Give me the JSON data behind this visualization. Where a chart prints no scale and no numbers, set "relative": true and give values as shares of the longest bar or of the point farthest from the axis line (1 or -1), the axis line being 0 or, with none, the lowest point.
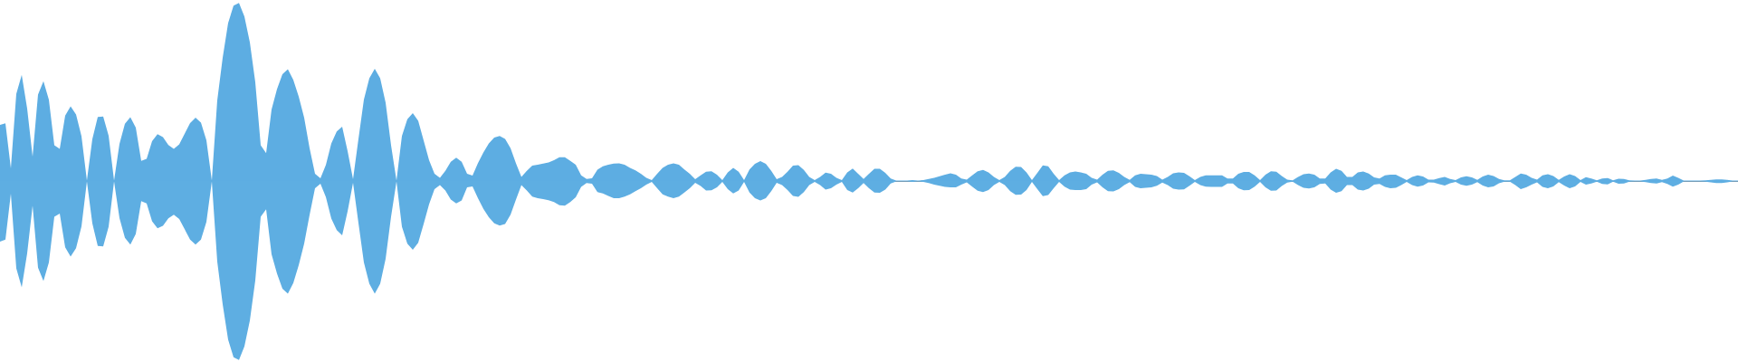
{
  "chart_data": {
    "type": "area",
    "relative": true,
    "categories": [
      null,
      null,
      null,
      null,
      null,
      null,
      null,
      null,
      null,
      null,
      null,
      null,
      null,
      null,
      null,
      null,
      null,
      null,
      null,
      null,
      null,
      null,
      null,
      null,
      null,
      null,
      null,
      null,
      null,
      null,
      null,
      null,
      null,
      null,
      null,
      null,
      null,
      null,
      null,
      null,
      null,
      null,
      null,
      null,
      null,
      null,
      null,
      null,
      null,
      null,
      null,
      null,
      null,
      null,
      null,
      null,
      null,
      null,
      null,
      null,
      null,
      null,
      null,
      null,
      null,
      null,
      null,
      null,
      null,
      null,
      null,
      null,
      null,
      null,
      null,
      null,
      null,
      null,
      null,
      null,
      null,
      null,
      null,
      null,
      null,
      null,
      null,
      null,
      null,
      null,
      null,
      null,
      null,
      null,
      null,
      null,
      null,
      null,
      null,
      null,
      null,
      null,
      null,
      null,
      null,
      null,
      null,
      null,
      null,
      null,
      null,
      null,
      null,
      null,
      null,
      null,
      null,
      null,
      null,
      null,
      null,
      null,
      null,
      null,
      null,
      null,
      null,
      null,
      null,
      null,
      null,
      null,
      null,
      null,
      null,
      null,
      null,
      null,
      null,
      null,
      null,
      null,
      null,
      null,
      null,
      null,
      null,
      null,
      null,
      null,
      null,
      null,
      null,
      null,
      null,
      null,
      null,
      null,
      null,
      null,
      null,
      null,
      null,
      null,
      null,
      null,
      null,
      null,
      null,
      null,
      null,
      null,
      null,
      null,
      null,
      null,
      null,
      null,
      null,
      null,
      null,
      null,
      null,
      null,
      null,
      null,
      null,
      null,
      null,
      null,
      null,
      null,
      null,
      null,
      null,
      null,
      null,
      null,
      null,
      null,
      null,
      null,
      null,
      null,
      null,
      null,
      null,
      null,
      null,
      null,
      null,
      null,
      null,
      null,
      null,
      null,
      null,
      null,
      null,
      null,
      null,
      null,
      null,
      null,
      null,
      null,
      null,
      null,
      null,
      null,
      null,
      null,
      null,
      null,
      null,
      null,
      null,
      null,
      null,
      null,
      null,
      null,
      null,
      null,
      null,
      null,
      null,
      null,
      null,
      null,
      null,
      null,
      null,
      null,
      null,
      null,
      null,
      null,
      null,
      null,
      null,
      null,
      null,
      null,
      null,
      null,
      null,
      null,
      null,
      null,
      null,
      null,
      null,
      null,
      null,
      null,
      null,
      null,
      null,
      null,
      null,
      null,
      null,
      null,
      null,
      null,
      null,
      null,
      null,
      null,
      null,
      null,
      null,
      null,
      null,
      null,
      null,
      null,
      null,
      null,
      null,
      null,
      null,
      null,
      null,
      null,
      null,
      null,
      null,
      null,
      null,
      null,
      null,
      null,
      null,
      null,
      null,
      null,
      null,
      null,
      null
    ],
    "series": [
      {
        "color": "#5dade2",
        "values": [
          0.314,
          0.323,
          0.071,
          0.487,
          0.593,
          0.405,
          0.137,
          0.483,
          0.558,
          0.454,
          0.2,
          0.18,
          0.366,
          0.418,
          0.372,
          0.251,
          0.003,
          0.234,
          0.358,
          0.361,
          0.253,
          0.003,
          0.208,
          0.32,
          0.357,
          0.298,
          0.113,
          0.124,
          0.223,
          0.262,
          0.246,
          0.201,
          0.18,
          0.205,
          0.264,
          0.324,
          0.354,
          0.326,
          0.228,
          0.003,
          0.45,
          0.69,
          0.883,
          0.98,
          0.995,
          0.92,
          0.776,
          0.553,
          0.2,
          0.156,
          0.4,
          0.513,
          0.597,
          0.625,
          0.566,
          0.472,
          0.354,
          0.184,
          0.04,
          0.015,
          0.09,
          0.21,
          0.277,
          0.303,
          0.167,
          0.01,
          0.235,
          0.455,
          0.574,
          0.628,
          0.574,
          0.438,
          0.2,
          0.003,
          0.252,
          0.345,
          0.379,
          0.337,
          0.227,
          0.116,
          0.04,
          0.018,
          0.057,
          0.108,
          0.13,
          0.108,
          0.04,
          0.03,
          0.1,
          0.159,
          0.21,
          0.243,
          0.252,
          0.235,
          0.184,
          0.099,
          0.023,
          0.057,
          0.086,
          0.091,
          0.098,
          0.104,
          0.116,
          0.133,
          0.133,
          0.113,
          0.091,
          0.031,
          0.011,
          0.015,
          0.063,
          0.082,
          0.091,
          0.098,
          0.099,
          0.091,
          0.074,
          0.06,
          0.04,
          0.018,
          0.005,
          0.04,
          0.074,
          0.091,
          0.099,
          0.091,
          0.065,
          0.04,
          0.01,
          0.031,
          0.052,
          0.055,
          0.035,
          0.005,
          0.048,
          0.074,
          0.052,
          0.005,
          0.065,
          0.096,
          0.111,
          0.096,
          0.057,
          0.01,
          0.023,
          0.052,
          0.086,
          0.089,
          0.062,
          0.023,
          0.005,
          0.023,
          0.047,
          0.04,
          0.018,
          0.005,
          0.048,
          0.07,
          0.04,
          0.011,
          0.04,
          0.068,
          0.068,
          0.045,
          0.014,
          0.003,
          0.003,
          0.003,
          0.005,
          0.003,
          0.005,
          0.011,
          0.018,
          0.026,
          0.035,
          0.043,
          0.035,
          0.014,
          0.008,
          0.031,
          0.055,
          0.062,
          0.048,
          0.023,
          0.005,
          0.023,
          0.057,
          0.08,
          0.079,
          0.048,
          0.005,
          0.045,
          0.087,
          0.082,
          0.04,
          0.005,
          0.031,
          0.048,
          0.053,
          0.048,
          0.04,
          0.018,
          0.008,
          0.035,
          0.057,
          0.059,
          0.045,
          0.023,
          0.006,
          0.031,
          0.04,
          0.038,
          0.035,
          0.028,
          0.008,
          0.023,
          0.043,
          0.048,
          0.045,
          0.026,
          0.005,
          0.023,
          0.031,
          0.031,
          0.031,
          0.031,
          0.014,
          0.014,
          0.04,
          0.051,
          0.05,
          0.031,
          0.005,
          0.035,
          0.054,
          0.052,
          0.028,
          0.008,
          0.004,
          0.023,
          0.038,
          0.042,
          0.035,
          0.014,
          0.014,
          0.048,
          0.068,
          0.057,
          0.023,
          0.023,
          0.048,
          0.053,
          0.042,
          0.02,
          0.014,
          0.031,
          0.036,
          0.035,
          0.02,
          0.005,
          0.023,
          0.031,
          0.025,
          0.008,
          0.008,
          0.016,
          0.023,
          0.011,
          0.005,
          0.02,
          0.026,
          0.02,
          0.006,
          0.025,
          0.035,
          0.028,
          0.011,
          0.004,
          0.004,
          0.023,
          0.042,
          0.035,
          0.018,
          0.008,
          0.031,
          0.038,
          0.028,
          0.006,
          0.025,
          0.038,
          0.028,
          0.005,
          0.021,
          0.014,
          0.004,
          0.014,
          0.017,
          0.004,
          0.013,
          0.012,
          0.004,
          0.003,
          0.003,
          0.006,
          0.012,
          0.014,
          0.006,
          0.014,
          0.03,
          0.018,
          0.003,
          0.003,
          0.003,
          0.003,
          0.004,
          0.006,
          0.009,
          0.009,
          0.006,
          0.003,
          0.003
        ]
      },
      {
        "color": "#5eaee2",
        "values": [
          -0.339,
          -0.328,
          -0.071,
          -0.488,
          -0.594,
          -0.405,
          -0.138,
          -0.484,
          -0.559,
          -0.455,
          -0.2,
          -0.182,
          -0.371,
          -0.423,
          -0.376,
          -0.254,
          -0.003,
          -0.237,
          -0.363,
          -0.365,
          -0.256,
          -0.003,
          -0.207,
          -0.318,
          -0.355,
          -0.296,
          -0.112,
          -0.125,
          -0.225,
          -0.265,
          -0.25,
          -0.209,
          -0.189,
          -0.213,
          -0.27,
          -0.328,
          -0.356,
          -0.328,
          -0.229,
          -0.003,
          -0.45,
          -0.69,
          -0.887,
          -0.985,
          -1,
          -0.925,
          -0.78,
          -0.556,
          -0.2,
          -0.158,
          -0.41,
          -0.517,
          -0.602,
          -0.63,
          -0.57,
          -0.47,
          -0.35,
          -0.19,
          -0.04,
          -0.015,
          -0.09,
          -0.21,
          -0.275,
          -0.304,
          -0.17,
          -0.01,
          -0.235,
          -0.455,
          -0.574,
          -0.63,
          -0.574,
          -0.435,
          -0.2,
          -0.003,
          -0.255,
          -0.35,
          -0.384,
          -0.345,
          -0.24,
          -0.13,
          -0.045,
          -0.023,
          -0.053,
          -0.104,
          -0.125,
          -0.109,
          -0.036,
          -0.03,
          -0.096,
          -0.155,
          -0.203,
          -0.237,
          -0.249,
          -0.24,
          -0.189,
          -0.104,
          -0.023,
          -0.053,
          -0.087,
          -0.096,
          -0.101,
          -0.108,
          -0.118,
          -0.135,
          -0.138,
          -0.118,
          -0.091,
          -0.033,
          -0.011,
          -0.015,
          -0.062,
          -0.07,
          -0.084,
          -0.096,
          -0.096,
          -0.087,
          -0.074,
          -0.057,
          -0.04,
          -0.02,
          -0.005,
          -0.04,
          -0.074,
          -0.087,
          -0.096,
          -0.087,
          -0.064,
          -0.04,
          -0.01,
          -0.028,
          -0.053,
          -0.052,
          -0.036,
          -0.005,
          -0.045,
          -0.07,
          -0.053,
          -0.005,
          -0.064,
          -0.096,
          -0.109,
          -0.096,
          -0.057,
          -0.01,
          -0.023,
          -0.05,
          -0.084,
          -0.089,
          -0.062,
          -0.023,
          -0.005,
          -0.023,
          -0.048,
          -0.04,
          -0.02,
          -0.005,
          -0.05,
          -0.065,
          -0.04,
          -0.011,
          -0.04,
          -0.065,
          -0.066,
          -0.048,
          -0.014,
          -0.003,
          -0.003,
          -0.003,
          -0.005,
          -0.003,
          -0.005,
          -0.011,
          -0.02,
          -0.026,
          -0.033,
          -0.036,
          -0.036,
          -0.02,
          -0.008,
          -0.031,
          -0.055,
          -0.062,
          -0.05,
          -0.023,
          -0.005,
          -0.023,
          -0.057,
          -0.077,
          -0.076,
          -0.05,
          -0.005,
          -0.045,
          -0.085,
          -0.079,
          -0.04,
          -0.005,
          -0.031,
          -0.048,
          -0.05,
          -0.05,
          -0.045,
          -0.02,
          -0.008,
          -0.036,
          -0.057,
          -0.058,
          -0.045,
          -0.023,
          -0.006,
          -0.033,
          -0.04,
          -0.038,
          -0.036,
          -0.026,
          -0.009,
          -0.023,
          -0.043,
          -0.048,
          -0.047,
          -0.026,
          -0.005,
          -0.023,
          -0.031,
          -0.033,
          -0.033,
          -0.033,
          -0.014,
          -0.014,
          -0.04,
          -0.052,
          -0.051,
          -0.031,
          -0.005,
          -0.036,
          -0.055,
          -0.053,
          -0.028,
          -0.009,
          -0.004,
          -0.023,
          -0.038,
          -0.042,
          -0.036,
          -0.016,
          -0.014,
          -0.048,
          -0.066,
          -0.057,
          -0.023,
          -0.023,
          -0.048,
          -0.053,
          -0.043,
          -0.02,
          -0.016,
          -0.033,
          -0.04,
          -0.038,
          -0.023,
          -0.005,
          -0.023,
          -0.031,
          -0.025,
          -0.008,
          -0.009,
          -0.018,
          -0.025,
          -0.013,
          -0.005,
          -0.02,
          -0.026,
          -0.02,
          -0.006,
          -0.025,
          -0.036,
          -0.03,
          -0.013,
          -0.004,
          -0.004,
          -0.023,
          -0.046,
          -0.036,
          -0.02,
          -0.008,
          -0.033,
          -0.04,
          -0.03,
          -0.006,
          -0.025,
          -0.04,
          -0.03,
          -0.005,
          -0.02,
          -0.014,
          -0.004,
          -0.016,
          -0.019,
          -0.004,
          -0.015,
          -0.014,
          -0.004,
          -0.003,
          -0.003,
          -0.006,
          -0.012,
          -0.014,
          -0.006,
          -0.016,
          -0.031,
          -0.02,
          -0.003,
          -0.003,
          -0.003,
          -0.003,
          -0.004,
          -0.007,
          -0.011,
          -0.011,
          -0.007,
          -0.003,
          -0.003
        ]
      }
    ]
  }
}
